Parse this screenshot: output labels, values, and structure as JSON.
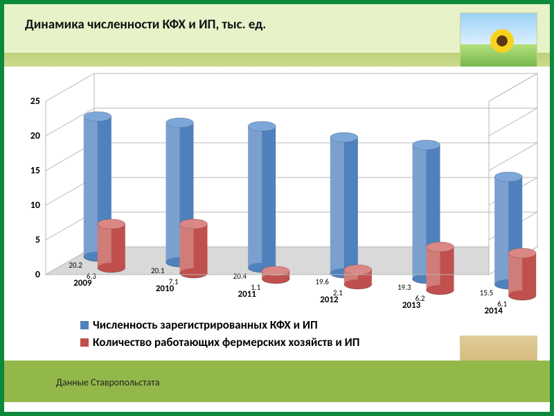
{
  "title": "Динамика численности КФХ и ИП, тыс. ед.",
  "source": "Данные Ставропольстата",
  "chart": {
    "type": "3d-cylinder-bar",
    "categories": [
      "2009",
      "2010",
      "2011",
      "2012",
      "2013",
      "2014"
    ],
    "series": [
      {
        "name": "Численность зарегистрированных КФХ и ИП",
        "color": "#4f81bd",
        "color_top": "#7da7d9",
        "values": [
          20.2,
          20.1,
          20.4,
          19.6,
          19.3,
          15.5
        ],
        "labels": [
          "20.2",
          "20.1",
          "20.4",
          "19.6",
          "19.3",
          "15.5"
        ]
      },
      {
        "name": "Количество работающих фермерских хозяйств и ИП",
        "color": "#c0504d",
        "color_top": "#d98886",
        "values": [
          6.3,
          7.1,
          1.1,
          2.1,
          6.2,
          6.1
        ],
        "labels": [
          "6.3",
          "7.1",
          "1.1",
          "2.1",
          "6.2",
          "6.1"
        ]
      }
    ],
    "y_axis": {
      "min": 0,
      "max": 25,
      "step": 5,
      "ticks": [
        "0",
        "5",
        "10",
        "15",
        "20",
        "25"
      ]
    },
    "wall_color": "#ffffff",
    "grid_color": "#b7b7b7",
    "floor_color": "#d9d9d9",
    "label_fontsize": 11
  },
  "legend": {
    "marker_blue": "#4f81bd",
    "marker_red": "#c0504d"
  }
}
